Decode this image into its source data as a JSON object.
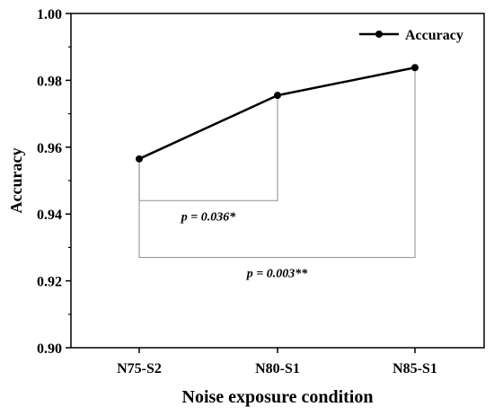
{
  "chart_data": {
    "type": "line",
    "title": "",
    "xlabel": "Noise exposure condition",
    "ylabel": "Accuracy",
    "categories": [
      "N75-S2",
      "N80-S1",
      "N85-S1"
    ],
    "series": [
      {
        "name": "Accuracy",
        "values": [
          0.9565,
          0.9755,
          0.9838
        ]
      }
    ],
    "ylim": [
      0.9,
      1.0
    ],
    "yticks": [
      "0.90",
      "0.92",
      "0.94",
      "0.96",
      "0.98",
      "1.00"
    ],
    "grid": false,
    "legend_position": "top-right",
    "annotations": [
      {
        "text": "p = 0.036*",
        "from": "N75-S2",
        "to": "N80-S1",
        "y": 0.944
      },
      {
        "text": "p = 0.003**",
        "from": "N75-S2",
        "to": "N85-S1",
        "y": 0.927
      }
    ],
    "colors": {
      "line": "#000000",
      "bracket": "#9e9e9e"
    }
  }
}
